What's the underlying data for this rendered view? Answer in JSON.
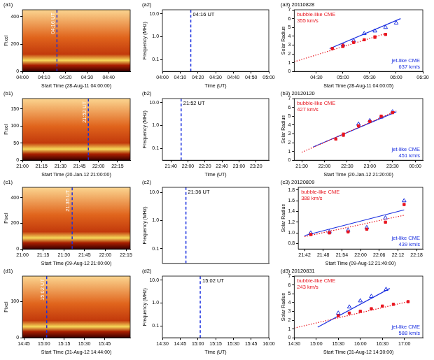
{
  "chart_data": [
    {
      "type": "image",
      "label": "(a1)",
      "xlabel": "Start Time (28-Aug-11 04:00:00)",
      "ylabel": "Pixel",
      "xlim": [
        240,
        290
      ],
      "ylim": [
        0,
        450
      ],
      "xticks": [
        {
          "value": 240,
          "label": "04:00"
        },
        {
          "value": 250,
          "label": "04:10"
        },
        {
          "value": 260,
          "label": "04:20"
        },
        {
          "value": 270,
          "label": "04:30"
        },
        {
          "value": 280,
          "label": "04:40"
        }
      ],
      "yticks": [
        0,
        200,
        400
      ],
      "annotations": [
        {
          "x": 256,
          "text": "04:16 UT"
        }
      ]
    },
    {
      "type": "spectrum",
      "label": "(a2)",
      "xlabel": "Time (UT)",
      "ylabel": "Frequency (MHz)",
      "log": "y",
      "xlim": [
        240,
        300
      ],
      "ylim": [
        0.03,
        15
      ],
      "xticks": [
        {
          "value": 240,
          "label": "04:00"
        },
        {
          "value": 250,
          "label": "04:10"
        },
        {
          "value": 260,
          "label": "04:20"
        },
        {
          "value": 270,
          "label": "04:30"
        },
        {
          "value": 280,
          "label": "04:40"
        },
        {
          "value": 290,
          "label": "04:50"
        },
        {
          "value": 300,
          "label": "05:00"
        }
      ],
      "yticks": [
        0.1,
        {
          "value": 1,
          "label": "1.0"
        },
        {
          "value": 10,
          "label": "10.0"
        }
      ],
      "annotations": [
        {
          "x": 256,
          "text": "04:16 UT"
        }
      ]
    },
    {
      "type": "scatter",
      "label": "(a3)",
      "title": "20110828",
      "xlabel": "Start Time (28-Aug-11 04:00:05)",
      "ylabel": "Solar Radius",
      "xlim": [
        245,
        390
      ],
      "ylim": [
        0,
        7
      ],
      "xticks": [
        {
          "value": 270,
          "label": "04:30"
        },
        {
          "value": 300,
          "label": "05:00"
        },
        {
          "value": 330,
          "label": "05:30"
        },
        {
          "value": 360,
          "label": "06:00"
        },
        {
          "value": 390,
          "label": "06:30"
        }
      ],
      "yticks": [
        0,
        1,
        2,
        3,
        4,
        5,
        6,
        7
      ],
      "series": [
        {
          "name": "bubble-like CME",
          "annotation": "355 km/s",
          "color": "#e8141e",
          "marker": "square",
          "line_style": "dotted",
          "x": [
            288,
            300,
            312,
            324,
            336,
            348
          ],
          "values": [
            2.6,
            2.9,
            3.3,
            3.6,
            3.9,
            4.2
          ],
          "errors": [
            null,
            0.2,
            null,
            null,
            0.15,
            null
          ],
          "fit": {
            "x": [
              245,
              348
            ],
            "values": [
              1.1,
              4.3
            ]
          }
        },
        {
          "name": "jet-like CME",
          "annotation": "637 km/s",
          "color": "#1a2fe0",
          "marker": "triangle",
          "line_style": "solid",
          "x": [
            300,
            312,
            324,
            336,
            348,
            360
          ],
          "values": [
            3.0,
            3.5,
            4.3,
            4.6,
            5.0,
            5.5
          ],
          "fit": {
            "x": [
              285,
              365
            ],
            "values": [
              2.6,
              6.0
            ]
          }
        }
      ]
    },
    {
      "type": "image",
      "label": "(b1)",
      "xlabel": "Start Time (20-Jan-12 21:00:00)",
      "ylabel": "Pixel",
      "xlim": [
        1260,
        1345
      ],
      "ylim": [
        0,
        180
      ],
      "xticks": [
        {
          "value": 1260,
          "label": "21:00"
        },
        {
          "value": 1275,
          "label": "21:15"
        },
        {
          "value": 1290,
          "label": "21:30"
        },
        {
          "value": 1305,
          "label": "21:45"
        },
        {
          "value": 1320,
          "label": "22:00"
        },
        {
          "value": 1335,
          "label": "22:15"
        }
      ],
      "yticks": [
        0,
        50,
        100,
        150
      ],
      "annotations": [
        {
          "x": 1312,
          "text": "21:52 UT"
        }
      ]
    },
    {
      "type": "spectrum",
      "label": "(b2)",
      "xlabel": "Time (UT)",
      "ylabel": "Frequency (MHz)",
      "log": "y",
      "xlim": [
        1290,
        1415
      ],
      "ylim": [
        0.03,
        15
      ],
      "xticks": [
        {
          "value": 1300,
          "label": "21:40"
        },
        {
          "value": 1320,
          "label": "22:00"
        },
        {
          "value": 1340,
          "label": "22:20"
        },
        {
          "value": 1360,
          "label": "22:40"
        },
        {
          "value": 1380,
          "label": "23:00"
        },
        {
          "value": 1400,
          "label": "23:20"
        }
      ],
      "yticks": [
        0.1,
        {
          "value": 1,
          "label": "1.0"
        },
        {
          "value": 10,
          "label": "10.0"
        }
      ],
      "annotations": [
        {
          "x": 1312,
          "text": "21:52 UT"
        }
      ]
    },
    {
      "type": "scatter",
      "label": "(b3)",
      "title": "20120120",
      "xlabel": "Start Time (20-Jan-12 21:20:00)",
      "ylabel": "Solar Radius",
      "xlim": [
        1280,
        1450
      ],
      "ylim": [
        0,
        7
      ],
      "xticks": [
        {
          "value": 1290,
          "label": "21:30"
        },
        {
          "value": 1320,
          "label": "22:00"
        },
        {
          "value": 1350,
          "label": "22:30"
        },
        {
          "value": 1380,
          "label": "23:00"
        },
        {
          "value": 1410,
          "label": "23:30"
        },
        {
          "value": 1440,
          "label": "00:00"
        }
      ],
      "yticks": [
        0,
        1,
        2,
        3,
        4,
        5,
        6,
        7
      ],
      "series": [
        {
          "name": "bubble-like CME",
          "annotation": "427 km/s",
          "color": "#e8141e",
          "marker": "square",
          "line_style": "dotted",
          "x": [
            1335,
            1345,
            1365,
            1380,
            1395,
            1410
          ],
          "values": [
            2.4,
            2.9,
            3.9,
            4.4,
            5.0,
            5.4
          ],
          "errors": [
            null,
            0.2,
            null,
            null,
            null,
            null
          ],
          "fit": {
            "x": [
              1290,
              1415
            ],
            "values": [
              0.9,
              5.6
            ]
          }
        },
        {
          "name": "jet-like CME",
          "annotation": "451 km/s",
          "color": "#1a2fe0",
          "marker": "triangle",
          "line_style": "solid",
          "x": [
            1365,
            1380,
            1395,
            1410
          ],
          "values": [
            4.1,
            4.5,
            4.9,
            5.5
          ],
          "fit": {
            "x": [
              1305,
              1415
            ],
            "values": [
              1.5,
              5.5
            ]
          }
        }
      ]
    },
    {
      "type": "image",
      "label": "(c1)",
      "xlabel": "Start Time (09-Aug-12 21:00:00)",
      "ylabel": "Pixel",
      "xlim": [
        1260,
        1338
      ],
      "ylim": [
        0,
        480
      ],
      "xticks": [
        {
          "value": 1260,
          "label": "21:00"
        },
        {
          "value": 1275,
          "label": "21:15"
        },
        {
          "value": 1290,
          "label": "21:30"
        },
        {
          "value": 1305,
          "label": "21:45"
        },
        {
          "value": 1320,
          "label": "22:00"
        },
        {
          "value": 1335,
          "label": "22:15"
        }
      ],
      "yticks": [
        0,
        200,
        400
      ],
      "annotations": [
        {
          "x": 1296,
          "text": "21:36 UT"
        }
      ]
    },
    {
      "type": "spectrum",
      "label": "(c2)",
      "ylabel": "Frequency (MHz)",
      "log": "y",
      "tick_labels": "y",
      "xlim": [
        1275,
        1370
      ],
      "ylim": [
        0.03,
        15
      ],
      "yticks": [
        0.1,
        {
          "value": 1,
          "label": "1.0"
        },
        {
          "value": 10,
          "label": "10.0"
        }
      ],
      "annotations": [
        {
          "x": 1296,
          "text": "21:36 UT"
        }
      ]
    },
    {
      "type": "scatter",
      "label": "(c3)",
      "title": "20120809",
      "xlabel": "Start Time (09-Aug-12 21:40:00)",
      "ylabel": "Solar Radius",
      "xlim": [
        1300,
        1340
      ],
      "ylim": [
        0.7,
        1.85
      ],
      "xticks": [
        {
          "value": 1302,
          "label": "21:42"
        },
        {
          "value": 1308,
          "label": "21:48"
        },
        {
          "value": 1314,
          "label": "21:54"
        },
        {
          "value": 1320,
          "label": "22:00"
        },
        {
          "value": 1326,
          "label": "22:06"
        },
        {
          "value": 1332,
          "label": "22:12"
        },
        {
          "value": 1338,
          "label": "22:18"
        }
      ],
      "yticks": [
        0.8,
        {
          "value": 1,
          "label": "1.0"
        },
        1.2,
        1.4,
        1.6,
        1.8
      ],
      "series": [
        {
          "name": "bubble-like CME",
          "annotation": "388 km/s",
          "color": "#e8141e",
          "marker": "square",
          "line_style": "dotted",
          "x": [
            1304,
            1310,
            1316,
            1322,
            1328,
            1334
          ],
          "values": [
            0.97,
            1.0,
            1.02,
            1.07,
            1.2,
            1.53
          ],
          "fit": {
            "x": [
              1302,
              1334
            ],
            "values": [
              0.93,
              1.33
            ]
          }
        },
        {
          "name": "jet-like CME",
          "annotation": "439 km/s",
          "color": "#1a2fe0",
          "marker": "triangle",
          "line_style": "solid",
          "x": [
            1304,
            1310,
            1316,
            1322,
            1328,
            1334
          ],
          "values": [
            1.0,
            1.02,
            1.05,
            1.1,
            1.28,
            1.6
          ],
          "fit": {
            "x": [
              1302,
              1334
            ],
            "values": [
              0.95,
              1.43
            ]
          }
        }
      ]
    },
    {
      "type": "image",
      "label": "(d1)",
      "xlabel": "Start Time (31-Aug-12 14:44:00)",
      "ylabel": "Pixel",
      "xlim": [
        884,
        964
      ],
      "ylim": [
        0,
        170
      ],
      "xticks": [
        {
          "value": 885,
          "label": "14:45"
        },
        {
          "value": 900,
          "label": "15:00"
        },
        {
          "value": 915,
          "label": "15:15"
        },
        {
          "value": 930,
          "label": "15:30"
        },
        {
          "value": 945,
          "label": "15:45"
        }
      ],
      "yticks": [
        0,
        100
      ],
      "annotations": [
        {
          "x": 902,
          "text": "15:02 UT"
        }
      ]
    },
    {
      "type": "spectrum",
      "label": "(d2)",
      "xlabel": "Time (UT)",
      "ylabel": "Frequency (MHz)",
      "log": "y",
      "xlim": [
        870,
        960
      ],
      "ylim": [
        0.03,
        15
      ],
      "xticks": [
        {
          "value": 870,
          "label": "14:30"
        },
        {
          "value": 885,
          "label": "14:45"
        },
        {
          "value": 900,
          "label": "15:00"
        },
        {
          "value": 915,
          "label": "15:15"
        },
        {
          "value": 930,
          "label": "15:30"
        },
        {
          "value": 945,
          "label": "15:45"
        },
        {
          "value": 960,
          "label": "16:00"
        }
      ],
      "yticks": [
        0.1,
        {
          "value": 1,
          "label": "1.0"
        },
        {
          "value": 10,
          "label": "10.0"
        }
      ],
      "annotations": [
        {
          "x": 902,
          "text": "15:02 UT"
        }
      ]
    },
    {
      "type": "scatter",
      "label": "(d3)",
      "title": "20120831",
      "xlabel": "Start Time (31-Aug-12 14:30:00)",
      "ylabel": "Solar Radius",
      "xlim": [
        870,
        1045
      ],
      "ylim": [
        0,
        7
      ],
      "xticks": [
        {
          "value": 870,
          "label": "14:30"
        },
        {
          "value": 900,
          "label": "15:00"
        },
        {
          "value": 930,
          "label": "15:30"
        },
        {
          "value": 960,
          "label": "16:00"
        },
        {
          "value": 990,
          "label": "16:30"
        },
        {
          "value": 1020,
          "label": "17:00"
        }
      ],
      "yticks": [
        0,
        1,
        2,
        3,
        4,
        5,
        6,
        7
      ],
      "series": [
        {
          "name": "bubble-like CME",
          "annotation": "243 km/s",
          "color": "#e8141e",
          "marker": "square",
          "line_style": "dotted",
          "x": [
            930,
            945,
            960,
            975,
            990,
            1005,
            1025
          ],
          "values": [
            2.5,
            2.8,
            3.0,
            3.3,
            3.6,
            3.8,
            4.1
          ],
          "fit": {
            "x": [
              870,
              1025
            ],
            "values": [
              1.1,
              4.1
            ]
          }
        },
        {
          "name": "jet-like CME",
          "annotation": "588 km/s",
          "color": "#1a2fe0",
          "marker": "triangle",
          "line_style": "solid",
          "x": [
            930,
            945,
            960,
            975,
            995
          ],
          "values": [
            2.8,
            3.5,
            4.2,
            4.7,
            5.5
          ],
          "fit": {
            "x": [
              902,
              1000
            ],
            "values": [
              1.2,
              5.6
            ]
          }
        }
      ]
    }
  ]
}
